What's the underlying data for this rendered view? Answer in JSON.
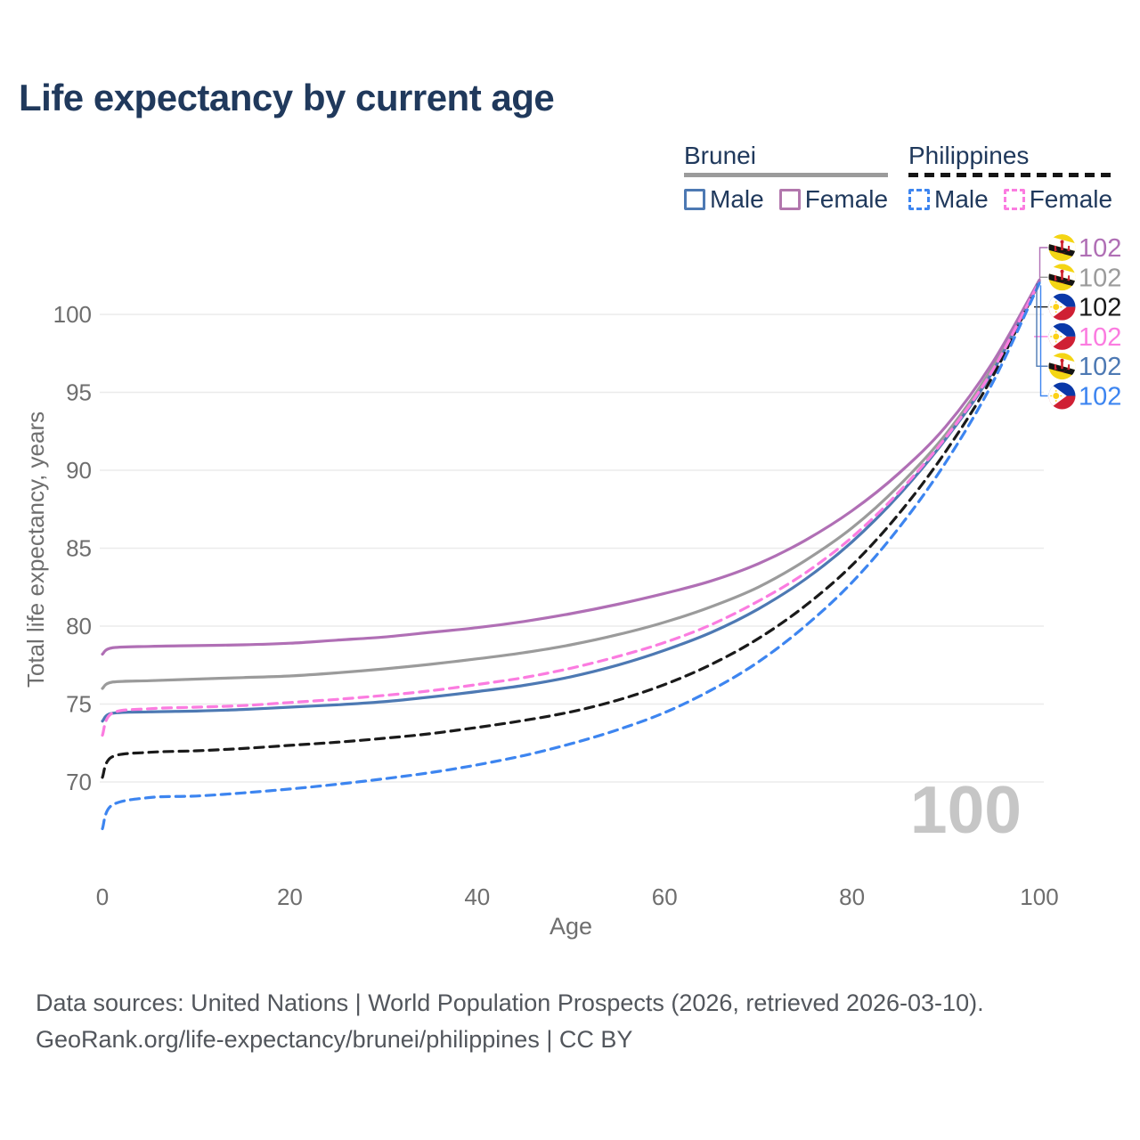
{
  "title": "Life expectancy by current age",
  "legend": {
    "groups": [
      {
        "label": "Brunei",
        "line_style": "solid",
        "line_color": "#9b9b9b",
        "items": [
          {
            "label": "Male",
            "color": "#4d79b3",
            "style": "solid"
          },
          {
            "label": "Female",
            "color": "#b277ad",
            "style": "solid"
          }
        ]
      },
      {
        "label": "Philippines",
        "line_style": "dashed",
        "line_color": "#151515",
        "items": [
          {
            "label": "Male",
            "color": "#3d85f0",
            "style": "dashed"
          },
          {
            "label": "Female",
            "color": "#fb7ce0",
            "style": "dashed"
          }
        ]
      }
    ]
  },
  "chart_data": {
    "type": "line",
    "title": "Life expectancy by current age",
    "xlabel": "Age",
    "ylabel": "Total life expectancy, years",
    "x_ticks": [
      0,
      20,
      40,
      60,
      80,
      100
    ],
    "y_ticks": [
      70,
      75,
      80,
      85,
      90,
      95,
      100
    ],
    "xlim": [
      0,
      100
    ],
    "ylim": [
      66.5,
      103
    ],
    "grid": "horizontal",
    "legend_position": "top-right",
    "ages": [
      0,
      1,
      5,
      10,
      15,
      20,
      25,
      30,
      35,
      40,
      45,
      50,
      55,
      60,
      65,
      70,
      75,
      80,
      85,
      90,
      95,
      100
    ],
    "series": [
      {
        "name": "Brunei",
        "role": "country-total",
        "color": "#9b9b9b",
        "dash": false,
        "values": [
          76.0,
          76.4,
          76.5,
          76.6,
          76.7,
          76.8,
          77.0,
          77.25,
          77.55,
          77.9,
          78.3,
          78.8,
          79.45,
          80.25,
          81.25,
          82.5,
          84.2,
          86.3,
          89.0,
          92.3,
          96.6,
          102.2
        ]
      },
      {
        "name": "Brunei Male",
        "role": "male",
        "color": "#4d79b3",
        "dash": false,
        "values": [
          73.9,
          74.4,
          74.5,
          74.55,
          74.65,
          74.8,
          74.95,
          75.15,
          75.45,
          75.8,
          76.2,
          76.75,
          77.5,
          78.45,
          79.6,
          81.1,
          83.0,
          85.4,
          88.4,
          92.0,
          96.3,
          102.1
        ]
      },
      {
        "name": "Brunei Female",
        "role": "female",
        "color": "#b06fb5",
        "dash": false,
        "values": [
          78.2,
          78.6,
          78.7,
          78.75,
          78.8,
          78.9,
          79.1,
          79.3,
          79.6,
          79.9,
          80.3,
          80.8,
          81.4,
          82.1,
          82.9,
          84.0,
          85.5,
          87.4,
          89.8,
          92.8,
          96.9,
          102.2
        ]
      },
      {
        "name": "Philippines",
        "role": "country-total",
        "color": "#1a1a1a",
        "dash": true,
        "values": [
          70.3,
          71.6,
          71.9,
          72.0,
          72.15,
          72.35,
          72.55,
          72.8,
          73.1,
          73.5,
          73.95,
          74.5,
          75.25,
          76.25,
          77.55,
          79.2,
          81.3,
          83.9,
          87.2,
          91.2,
          96.0,
          102.1
        ]
      },
      {
        "name": "Philippines Female",
        "role": "female",
        "color": "#fb7ce0",
        "dash": true,
        "values": [
          73.0,
          74.4,
          74.7,
          74.8,
          74.9,
          75.1,
          75.3,
          75.55,
          75.85,
          76.25,
          76.7,
          77.3,
          78.05,
          78.95,
          80.1,
          81.6,
          83.4,
          85.7,
          88.6,
          92.1,
          96.4,
          102.1
        ]
      },
      {
        "name": "Philippines Male",
        "role": "male",
        "color": "#3d85f0",
        "dash": true,
        "values": [
          67.0,
          68.5,
          69.0,
          69.1,
          69.3,
          69.55,
          69.85,
          70.2,
          70.6,
          71.1,
          71.7,
          72.45,
          73.35,
          74.45,
          75.9,
          77.7,
          80.0,
          82.8,
          86.3,
          90.5,
          95.6,
          102.0
        ]
      }
    ],
    "end_labels": [
      {
        "series": "Brunei Female",
        "flag": "brunei",
        "value": "102",
        "color": "#b06fb5"
      },
      {
        "series": "Brunei",
        "flag": "brunei",
        "value": "102",
        "color": "#9b9b9b"
      },
      {
        "series": "Philippines",
        "flag": "philippines",
        "value": "102",
        "color": "#1a1a1a"
      },
      {
        "series": "Philippines Female",
        "flag": "philippines",
        "value": "102",
        "color": "#fb7ce0"
      },
      {
        "series": "Brunei Male",
        "flag": "brunei",
        "value": "102",
        "color": "#4d79b3"
      },
      {
        "series": "Philippines Male",
        "flag": "philippines",
        "value": "102",
        "color": "#3d85f0"
      }
    ]
  },
  "watermark_age": "100",
  "footer": {
    "line1": "Data sources: United Nations | World Population Prospects (2026, retrieved 2026-03-10).",
    "line2": "GeoRank.org/life-expectancy/brunei/philippines | CC BY"
  }
}
